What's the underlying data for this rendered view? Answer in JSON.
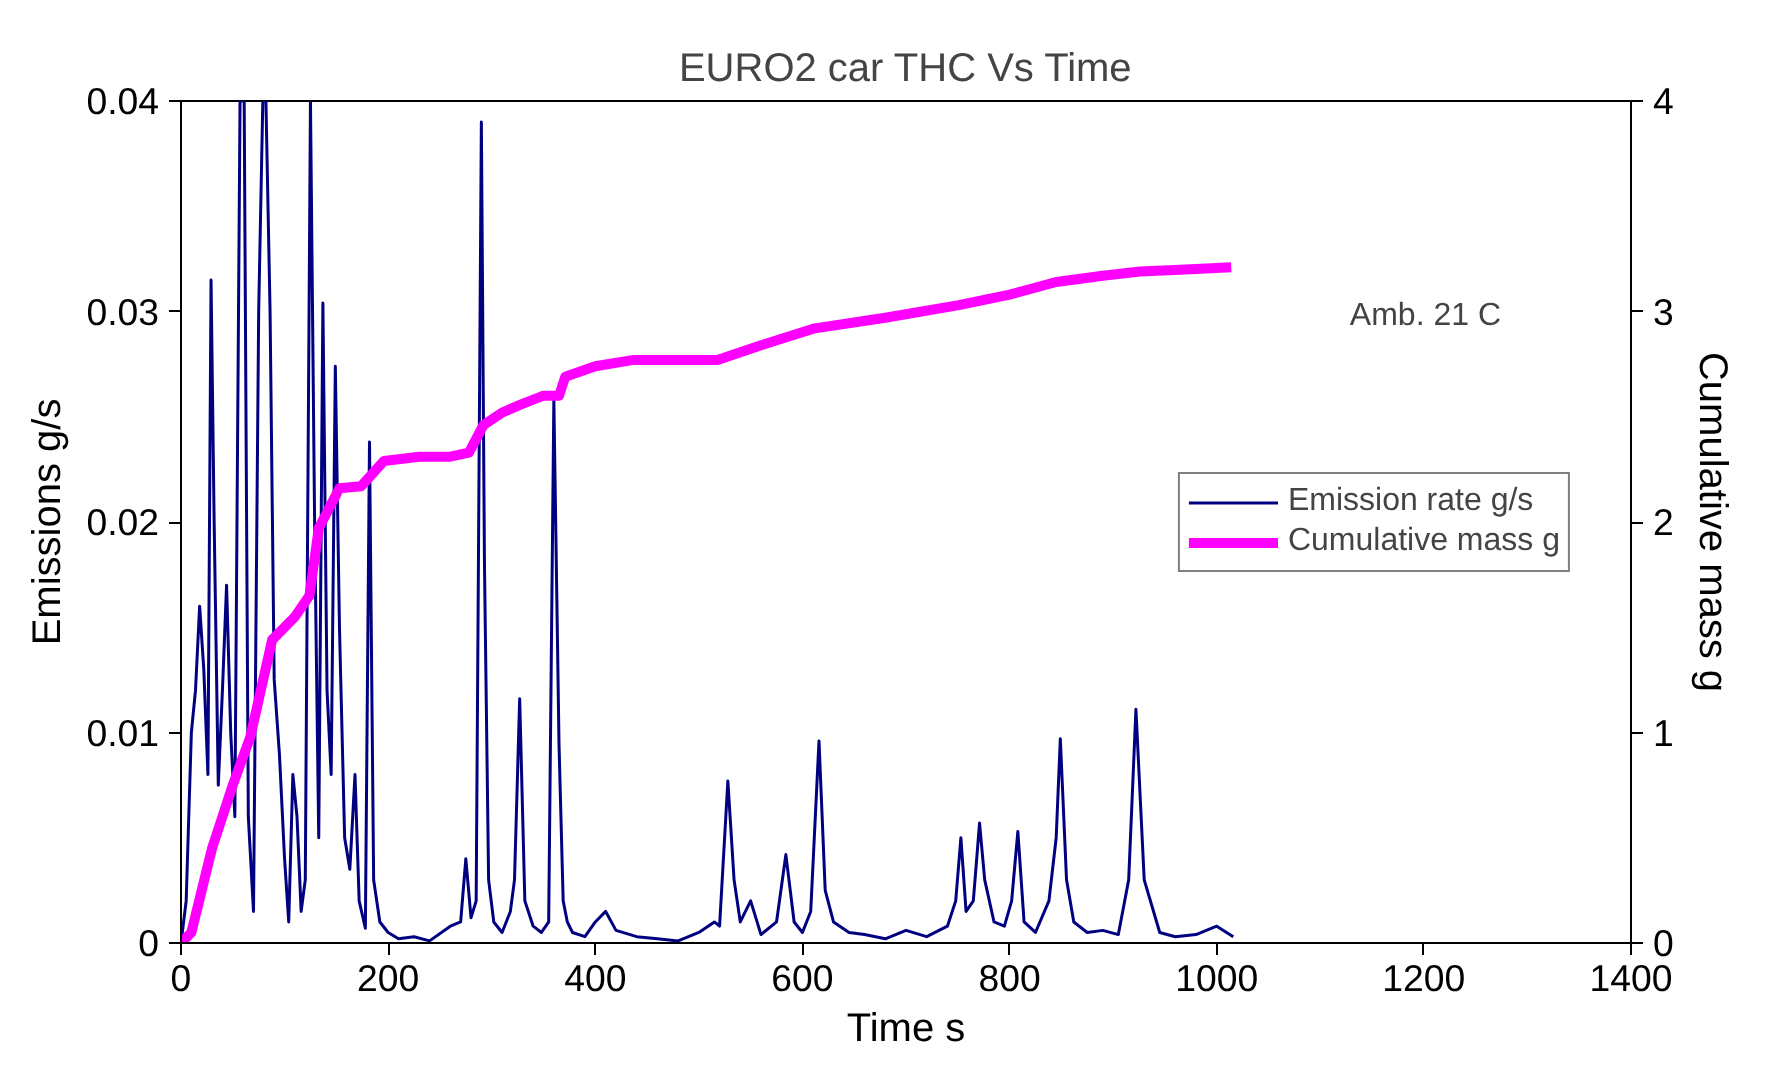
{
  "chart_data": {
    "type": "line",
    "title": "EURO2 car THC Vs Time",
    "xlabel": "Time s",
    "ylabel": "Emissions g/s",
    "y2label": "Cumulative mass g",
    "xlim": [
      0,
      1400
    ],
    "xticks": [
      0,
      200,
      400,
      600,
      800,
      1000,
      1200,
      1400
    ],
    "ylim": [
      0,
      0.04
    ],
    "yticks": [
      0,
      0.01,
      0.02,
      0.03,
      0.04
    ],
    "y2lim": [
      0,
      4
    ],
    "y2ticks": [
      0,
      1,
      2,
      3,
      4
    ],
    "grid": false,
    "legend": "right",
    "marker": "none",
    "line_style": "solid",
    "annotations": [
      "Amb. 21 C"
    ],
    "series": [
      {
        "name": "Emission rate g/s",
        "color": "#000080",
        "x": [
          0,
          5,
          10,
          14,
          18,
          22,
          26,
          29,
          32,
          36,
          40,
          44,
          48,
          52,
          57,
          61,
          65,
          70,
          75,
          79,
          82,
          86,
          90,
          95,
          100,
          104,
          108,
          112,
          116,
          120,
          125,
          129,
          133,
          137,
          141,
          145,
          149,
          153,
          158,
          163,
          168,
          172,
          178,
          182,
          186,
          192,
          200,
          210,
          225,
          240,
          260,
          270,
          275,
          280,
          285,
          290,
          293,
          297,
          302,
          310,
          318,
          322,
          327,
          332,
          340,
          348,
          355,
          360,
          365,
          369,
          373,
          378,
          390,
          400,
          410,
          420,
          440,
          460,
          480,
          500,
          515,
          520,
          528,
          534,
          540,
          550,
          560,
          575,
          584,
          592,
          600,
          608,
          616,
          622,
          630,
          645,
          660,
          680,
          700,
          720,
          740,
          748,
          753,
          758,
          765,
          771,
          776,
          785,
          795,
          802,
          808,
          814,
          825,
          838,
          845,
          849,
          855,
          862,
          875,
          890,
          905,
          915,
          922,
          930,
          945,
          960,
          980,
          1000,
          1016
        ],
        "values": [
          0,
          0.002,
          0.01,
          0.012,
          0.016,
          0.013,
          0.008,
          0.0315,
          0.02,
          0.0075,
          0.012,
          0.017,
          0.01,
          0.006,
          0.04,
          0.04,
          0.006,
          0.0015,
          0.03,
          0.04,
          0.04,
          0.03,
          0.0125,
          0.009,
          0.004,
          0.001,
          0.008,
          0.006,
          0.0015,
          0.003,
          0.04,
          0.02,
          0.005,
          0.0304,
          0.012,
          0.008,
          0.0274,
          0.015,
          0.005,
          0.0035,
          0.008,
          0.002,
          0.0007,
          0.0238,
          0.003,
          0.001,
          0.0005,
          0.0002,
          0.0003,
          0.0001,
          0.0008,
          0.001,
          0.004,
          0.0012,
          0.002,
          0.039,
          0.018,
          0.003,
          0.001,
          0.0005,
          0.0015,
          0.003,
          0.0116,
          0.002,
          0.0008,
          0.0005,
          0.001,
          0.0258,
          0.0094,
          0.002,
          0.001,
          0.0005,
          0.0003,
          0.001,
          0.0015,
          0.0006,
          0.0003,
          0.0002,
          0.0001,
          0.0005,
          0.001,
          0.0008,
          0.0077,
          0.003,
          0.001,
          0.002,
          0.0004,
          0.001,
          0.0042,
          0.001,
          0.0005,
          0.0015,
          0.0096,
          0.0025,
          0.001,
          0.0005,
          0.0004,
          0.0002,
          0.0006,
          0.0003,
          0.0008,
          0.002,
          0.005,
          0.0015,
          0.002,
          0.0057,
          0.003,
          0.001,
          0.0008,
          0.002,
          0.0053,
          0.001,
          0.0005,
          0.002,
          0.005,
          0.0097,
          0.003,
          0.001,
          0.0005,
          0.0006,
          0.0004,
          0.003,
          0.0111,
          0.003,
          0.0005,
          0.0003,
          0.0004,
          0.0008,
          0.0003
        ]
      },
      {
        "name": "Cumulative mass g",
        "color": "#ff00ff",
        "axis": "y2",
        "x": [
          0,
          10,
          30,
          50,
          67,
          88,
          110,
          124,
          133,
          153,
          174,
          196,
          230,
          260,
          278,
          292,
          310,
          329,
          350,
          365,
          371,
          400,
          437,
          480,
          518,
          560,
          612,
          680,
          751,
          800,
          845,
          890,
          926,
          970,
          1014
        ],
        "values": [
          0,
          0.05,
          0.45,
          0.75,
          0.98,
          1.44,
          1.55,
          1.65,
          1.97,
          2.16,
          2.17,
          2.29,
          2.31,
          2.31,
          2.33,
          2.46,
          2.52,
          2.56,
          2.6,
          2.6,
          2.69,
          2.74,
          2.77,
          2.77,
          2.77,
          2.84,
          2.92,
          2.97,
          3.03,
          3.08,
          3.14,
          3.17,
          3.19,
          3.2,
          3.21
        ]
      }
    ]
  }
}
